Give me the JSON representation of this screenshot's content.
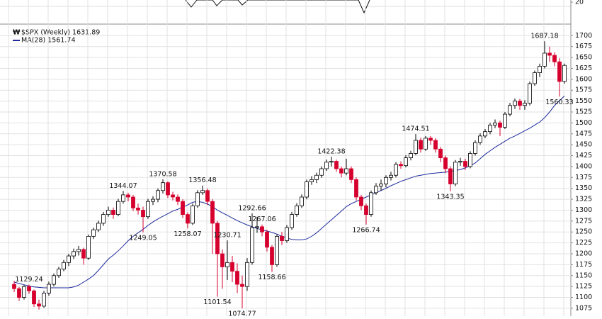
{
  "chart_data": {
    "type": "candlestick",
    "title": "$SPX (Weekly) 1631.89",
    "ma_label": "MA(28) 1561.74",
    "up_color": "#ffffff",
    "down_color": "#d6002e",
    "ma_color": "#1c2a9c",
    "ylim": [
      1057,
      1720
    ],
    "yticks": [
      1075,
      1100,
      1125,
      1150,
      1175,
      1200,
      1225,
      1250,
      1275,
      1300,
      1325,
      1350,
      1375,
      1400,
      1425,
      1450,
      1475,
      1500,
      1525,
      1550,
      1575,
      1600,
      1625,
      1650,
      1675,
      1700
    ],
    "grid": true,
    "top_panel_yticks": [
      20
    ],
    "open": [
      1130,
      1120,
      1100,
      1125,
      1115,
      1085,
      1080,
      1110,
      1130,
      1150,
      1165,
      1180,
      1195,
      1205,
      1210,
      1190,
      1240,
      1255,
      1270,
      1290,
      1300,
      1290,
      1320,
      1335,
      1330,
      1305,
      1300,
      1285,
      1320,
      1325,
      1345,
      1363,
      1335,
      1330,
      1320,
      1290,
      1270,
      1310,
      1340,
      1345,
      1320,
      1270,
      1200,
      1170,
      1180,
      1160,
      1130,
      1125,
      1180,
      1260,
      1262,
      1250,
      1215,
      1175,
      1240,
      1230,
      1260,
      1290,
      1310,
      1330,
      1365,
      1370,
      1380,
      1395,
      1410,
      1412,
      1395,
      1385,
      1395,
      1370,
      1330,
      1310,
      1290,
      1340,
      1355,
      1360,
      1375,
      1380,
      1405,
      1402,
      1420,
      1430,
      1460,
      1440,
      1465,
      1460,
      1440,
      1420,
      1395,
      1360,
      1410,
      1412,
      1400,
      1430,
      1455,
      1470,
      1480,
      1495,
      1500,
      1490,
      1520,
      1540,
      1550,
      1540,
      1545,
      1590,
      1615,
      1630,
      1660,
      1655,
      1640,
      1595
    ],
    "high": [
      1138,
      1124,
      1128,
      1129.24,
      1118,
      1095,
      1115,
      1136,
      1155,
      1170,
      1186,
      1200,
      1212,
      1218,
      1214,
      1244,
      1260,
      1276,
      1296,
      1308,
      1306,
      1326,
      1344.07,
      1340,
      1335,
      1315,
      1308,
      1326,
      1332,
      1350,
      1370.58,
      1366,
      1342,
      1336,
      1325,
      1295,
      1315,
      1346,
      1356.48,
      1350,
      1325,
      1275,
      1210,
      1230.71,
      1195,
      1178,
      1150,
      1190,
      1292.66,
      1285,
      1267.06,
      1255,
      1220,
      1245,
      1250,
      1266,
      1296,
      1316,
      1336,
      1370,
      1378,
      1386,
      1400,
      1416,
      1422.38,
      1416,
      1400,
      1418,
      1400,
      1375,
      1335,
      1315,
      1345,
      1362,
      1370,
      1380,
      1388,
      1410,
      1412,
      1426,
      1436,
      1474.51,
      1466,
      1470,
      1470,
      1465,
      1445,
      1425,
      1400,
      1415,
      1420,
      1418,
      1435,
      1460,
      1476,
      1486,
      1500,
      1508,
      1505,
      1525,
      1546,
      1556,
      1555,
      1552,
      1595,
      1620,
      1636,
      1687.18,
      1675,
      1662,
      1648,
      1636
    ],
    "low": [
      1112,
      1092,
      1095,
      1108,
      1078,
      1072,
      1076,
      1104,
      1125,
      1145,
      1160,
      1172,
      1188,
      1196,
      1175,
      1186,
      1234,
      1250,
      1264,
      1285,
      1280,
      1286,
      1315,
      1320,
      1298,
      1290,
      1249.05,
      1280,
      1312,
      1318,
      1338,
      1328,
      1322,
      1312,
      1282,
      1258.07,
      1266,
      1305,
      1335,
      1312,
      1200,
      1101.54,
      1120,
      1140,
      1135,
      1110,
      1074.77,
      1115,
      1175,
      1248,
      1240,
      1205,
      1158.66,
      1170,
      1220,
      1225,
      1255,
      1285,
      1305,
      1325,
      1358,
      1362,
      1374,
      1390,
      1400,
      1388,
      1375,
      1380,
      1362,
      1322,
      1300,
      1266.74,
      1285,
      1335,
      1345,
      1352,
      1368,
      1375,
      1395,
      1398,
      1414,
      1426,
      1432,
      1436,
      1450,
      1432,
      1410,
      1385,
      1343.35,
      1355,
      1402,
      1392,
      1396,
      1425,
      1450,
      1465,
      1474,
      1488,
      1470,
      1486,
      1515,
      1532,
      1530,
      1530,
      1540,
      1585,
      1605,
      1625,
      1640,
      1630,
      1560.33,
      1590
    ],
    "close": [
      1120,
      1100,
      1125,
      1115,
      1085,
      1080,
      1110,
      1130,
      1150,
      1165,
      1180,
      1195,
      1205,
      1210,
      1190,
      1240,
      1255,
      1270,
      1290,
      1300,
      1290,
      1320,
      1335,
      1330,
      1305,
      1300,
      1285,
      1320,
      1325,
      1345,
      1363,
      1335,
      1330,
      1320,
      1290,
      1270,
      1310,
      1340,
      1345,
      1320,
      1270,
      1200,
      1170,
      1180,
      1160,
      1130,
      1125,
      1180,
      1260,
      1262,
      1250,
      1215,
      1175,
      1240,
      1230,
      1260,
      1290,
      1310,
      1330,
      1365,
      1370,
      1380,
      1395,
      1410,
      1412,
      1395,
      1385,
      1395,
      1370,
      1330,
      1310,
      1290,
      1340,
      1355,
      1360,
      1375,
      1380,
      1405,
      1402,
      1420,
      1430,
      1460,
      1440,
      1465,
      1460,
      1440,
      1420,
      1395,
      1360,
      1410,
      1412,
      1400,
      1430,
      1455,
      1470,
      1480,
      1495,
      1500,
      1490,
      1520,
      1540,
      1550,
      1540,
      1545,
      1590,
      1615,
      1630,
      1660,
      1655,
      1640,
      1595,
      1631.89
    ],
    "ma": [
      1135,
      1132,
      1129,
      1126,
      1124,
      1123,
      1122,
      1122,
      1122,
      1122,
      1122,
      1122,
      1124,
      1128,
      1135,
      1142,
      1150,
      1162,
      1175,
      1188,
      1197,
      1207,
      1218,
      1230,
      1240,
      1248,
      1256,
      1265,
      1273,
      1280,
      1286,
      1292,
      1298,
      1302,
      1307,
      1312,
      1318,
      1320,
      1318,
      1314,
      1308,
      1300,
      1294,
      1288,
      1282,
      1276,
      1271,
      1266,
      1262,
      1258,
      1255,
      1252,
      1249,
      1245,
      1240,
      1236,
      1233,
      1232,
      1232,
      1234,
      1240,
      1248,
      1258,
      1268,
      1278,
      1288,
      1298,
      1308,
      1315,
      1320,
      1325,
      1330,
      1335,
      1340,
      1345,
      1350,
      1356,
      1361,
      1366,
      1370,
      1374,
      1378,
      1380,
      1382,
      1384,
      1385,
      1386,
      1387,
      1389,
      1391,
      1393,
      1397,
      1402,
      1408,
      1418,
      1428,
      1436,
      1444,
      1451,
      1458,
      1465,
      1470,
      1476,
      1482,
      1488,
      1495,
      1502,
      1512,
      1525,
      1540,
      1551,
      1561.74
    ],
    "high_labels": [
      3,
      22,
      30,
      38,
      43,
      48,
      50,
      64,
      81,
      107
    ],
    "low_labels": [
      26,
      35,
      41,
      46,
      52,
      71,
      88,
      110
    ]
  }
}
